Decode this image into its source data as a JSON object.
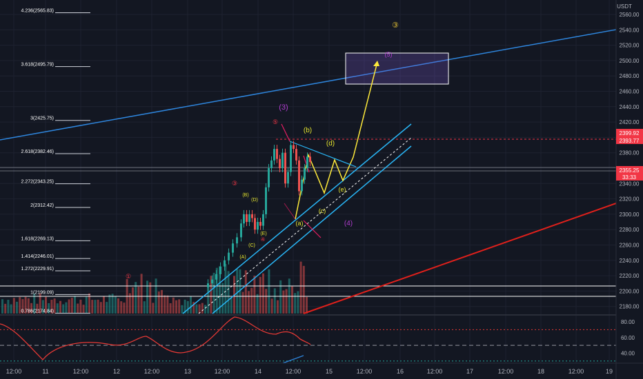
{
  "chart_data": {
    "type": "candlestick",
    "currency_label": "USDT",
    "price_axis": {
      "ticks": [
        2560.0,
        2540.0,
        2520.0,
        2500.0,
        2480.0,
        2460.0,
        2440.0,
        2420.0,
        2400.0,
        2380.0,
        2360.0,
        2340.0,
        2320.0,
        2300.0,
        2280.0,
        2260.0,
        2240.0,
        2220.0,
        2200.0,
        2180.0
      ],
      "ylim": [
        2170,
        2570
      ]
    },
    "time_axis": {
      "ticks": [
        "12:00",
        "11",
        "12:00",
        "12",
        "12:00",
        "13",
        "12:00",
        "14",
        "12:00",
        "15",
        "12:00",
        "16",
        "12:00",
        "17",
        "12:00",
        "18",
        "12:00",
        "19"
      ]
    },
    "price_badges": [
      {
        "value": "2399.92",
        "color": "#f23645"
      },
      {
        "value": "2393.77",
        "color": "#f23645"
      },
      {
        "value": "2355.25",
        "color": "#f23645"
      },
      {
        "value": "33:33",
        "color": "#f23645"
      }
    ],
    "fib_levels": [
      {
        "label": "4.236(2565.83)",
        "value": 2565.83
      },
      {
        "label": "3.618(2495.79)",
        "value": 2495.79
      },
      {
        "label": "3(2425.75)",
        "value": 2425.75
      },
      {
        "label": "2.618(2382.46)",
        "value": 2382.46
      },
      {
        "label": "2.272(2343.25)",
        "value": 2343.25
      },
      {
        "label": "2(2312.42)",
        "value": 2312.42
      },
      {
        "label": "1.618(2269.13)",
        "value": 2269.13
      },
      {
        "label": "1.414(2246.01)",
        "value": 2246.01
      },
      {
        "label": "1.272(2229.91)",
        "value": 2229.91
      },
      {
        "label": "1(2199.09)",
        "value": 2199.09
      },
      {
        "label": "0.786(2174.84)",
        "value": 2174.84
      }
    ],
    "wave_labels": [
      {
        "text": "③",
        "color": "#e5c235"
      },
      {
        "text": "(5)",
        "color": "#b23dd1"
      },
      {
        "text": "(3)",
        "color": "#b23dd1"
      },
      {
        "text": "⑤",
        "color": "#f23645"
      },
      {
        "text": "(b)",
        "color": "#e5e52e"
      },
      {
        "text": "(d)",
        "color": "#e5e52e"
      },
      {
        "text": "③",
        "color": "#f23645"
      },
      {
        "text": "(B)",
        "color": "#e5e52e"
      },
      {
        "text": "(D)",
        "color": "#e5e52e"
      },
      {
        "text": "(e)",
        "color": "#e5e52e"
      },
      {
        "text": "(c)",
        "color": "#e5e52e"
      },
      {
        "text": "(a)",
        "color": "#e5e52e"
      },
      {
        "text": "(4)",
        "color": "#b23dd1"
      },
      {
        "text": "(E)",
        "color": "#e5e52e"
      },
      {
        "text": "④",
        "color": "#f23645"
      },
      {
        "text": "(C)",
        "color": "#e5e52e"
      },
      {
        "text": "(A)",
        "color": "#e5e52e"
      },
      {
        "text": "①",
        "color": "#f23645"
      }
    ],
    "indicator": {
      "ticks": [
        80.0,
        60.0,
        40.0
      ],
      "ylim": [
        30,
        90
      ]
    },
    "colors": {
      "background": "#131722",
      "up": "#26a69a",
      "down": "#ef5350",
      "fib": "#ffffff",
      "channel": "#29b6f6",
      "trend_blue": "#2e86de",
      "trend_red": "#e0201b",
      "projection": "#ffeb3b"
    }
  }
}
